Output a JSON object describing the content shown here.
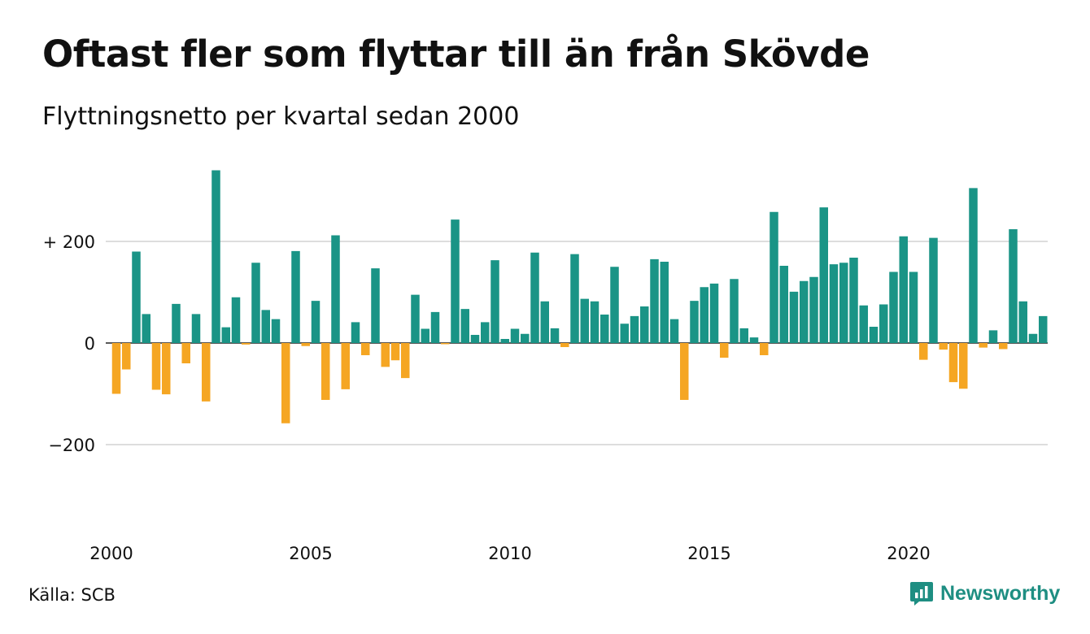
{
  "header": {
    "title": "Oftast fler som flyttar till än från Skövde",
    "subtitle": "Flyttningsnetto per kvartal sedan 2000"
  },
  "footer": {
    "source": "Källa: SCB",
    "brand": "Newsworthy"
  },
  "colors": {
    "positive": "#1a9486",
    "negative": "#f5a623",
    "grid": "#dddddd",
    "brand": "#1e8e82"
  },
  "chart_data": {
    "type": "bar",
    "title": "Oftast fler som flyttar till än från Skövde",
    "subtitle": "Flyttningsnetto per kvartal sedan 2000",
    "xlabel": "",
    "ylabel": "",
    "ylim": [
      -360,
      360
    ],
    "grid": true,
    "yticks": [
      {
        "value": 200,
        "label": "+ 200"
      },
      {
        "value": 0,
        "label": "0"
      },
      {
        "value": -200,
        "label": "−200"
      }
    ],
    "xticks": [
      "2000",
      "2005",
      "2010",
      "2015",
      "2020"
    ],
    "series": [
      {
        "values": [
          -100,
          -52,
          180,
          57,
          -92,
          -101,
          77,
          -40,
          57,
          -115,
          340,
          31,
          90,
          -3,
          158,
          65,
          47,
          -158,
          181,
          -6,
          83,
          -112,
          212,
          -91,
          41,
          -24,
          147,
          -47,
          -34,
          -69,
          95,
          28,
          61,
          -2,
          243,
          67,
          16,
          41,
          163,
          8,
          28,
          18,
          178,
          82,
          29,
          -8,
          175,
          87,
          82,
          56,
          150,
          38,
          53,
          72,
          165,
          160,
          47,
          -112,
          83,
          110,
          117,
          -29,
          126,
          29,
          11,
          -24,
          258,
          152,
          101,
          122,
          130,
          267,
          155,
          158,
          168,
          74,
          32,
          76,
          140,
          210,
          140,
          -33,
          207,
          -13,
          -77,
          -90,
          305,
          -9,
          25,
          -12,
          224,
          82,
          18,
          53
        ]
      }
    ],
    "start_year": 2000,
    "periods_per_year": 4
  }
}
